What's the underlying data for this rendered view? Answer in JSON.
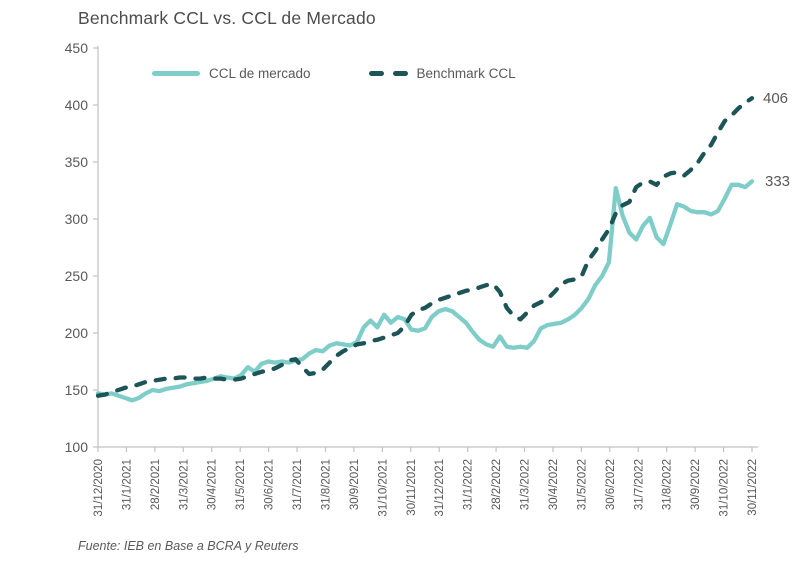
{
  "title": "Benchmark CCL vs. CCL de Mercado",
  "footer": "Fuente: IEB en Base a BCRA y Reuters",
  "colors": {
    "mercado": "#7ECDC8",
    "benchmark": "#1C5458",
    "axis": "#c2c2c2",
    "tick_text": "#595959",
    "title_text": "#4d4d4d"
  },
  "legend": [
    {
      "label": "CCL de mercado",
      "style": "solid"
    },
    {
      "label": "Benchmark CCL",
      "style": "dashed"
    }
  ],
  "chart_data": {
    "type": "line",
    "title": "Benchmark CCL vs. CCL de Mercado",
    "xlabel": "",
    "ylabel": "",
    "ylim": [
      100,
      450
    ],
    "y_ticks": [
      100,
      150,
      200,
      250,
      300,
      350,
      400,
      450
    ],
    "grid": false,
    "legend_position": "top-inside",
    "x_tick_labels": [
      "31/12/2020",
      "31/1/2021",
      "28/2/2021",
      "31/3/2021",
      "30/4/2021",
      "31/5/2021",
      "30/6/2021",
      "31/7/2021",
      "31/8/2021",
      "30/9/2021",
      "31/10/2021",
      "30/11/2021",
      "31/12/2021",
      "31/1/2022",
      "28/2/2022",
      "31/3/2022",
      "30/4/2022",
      "31/5/2022",
      "30/6/2022",
      "31/7/2022",
      "31/8/2022",
      "30/9/2022",
      "31/10/2022",
      "30/11/2022"
    ],
    "series": [
      {
        "name": "CCL de mercado",
        "style": "solid",
        "color": "#7ECDC8",
        "end_label": "333",
        "values": [
          147,
          146,
          147,
          145,
          143,
          141,
          143,
          147,
          150,
          149,
          151,
          152,
          153,
          155,
          156,
          157,
          158,
          160,
          162,
          161,
          160,
          163,
          170,
          166,
          173,
          175,
          174,
          175,
          174,
          176,
          177,
          182,
          185,
          184,
          189,
          191,
          190,
          189,
          192,
          205,
          211,
          205,
          216,
          209,
          214,
          212,
          203,
          202,
          204,
          214,
          219,
          221,
          219,
          214,
          209,
          201,
          194,
          190,
          188,
          197,
          188,
          187,
          188,
          187,
          193,
          204,
          207,
          208,
          209,
          212,
          216,
          222,
          230,
          242,
          250,
          262,
          327,
          303,
          288,
          282,
          294,
          301,
          284,
          278,
          295,
          313,
          311,
          307,
          306,
          306,
          304,
          307,
          318,
          330,
          330,
          328,
          333
        ]
      },
      {
        "name": "Benchmark CCL",
        "style": "dashed",
        "color": "#1C5458",
        "end_label": "406",
        "values": [
          145,
          146,
          148,
          150,
          152,
          153,
          155,
          157,
          158,
          159,
          160,
          160,
          161,
          161,
          160,
          160,
          161,
          160,
          160,
          159,
          159,
          160,
          162,
          164,
          166,
          167,
          169,
          172,
          176,
          177,
          170,
          164,
          165,
          168,
          174,
          180,
          184,
          187,
          190,
          191,
          193,
          194,
          196,
          198,
          200,
          206,
          216,
          220,
          222,
          226,
          229,
          231,
          233,
          235,
          237,
          238,
          240,
          242,
          243,
          236,
          222,
          215,
          212,
          218,
          224,
          227,
          230,
          236,
          243,
          246,
          247,
          250,
          264,
          272,
          282,
          291,
          305,
          312,
          315,
          328,
          332,
          333,
          330,
          337,
          340,
          341,
          338,
          343,
          349,
          358,
          365,
          376,
          386,
          391,
          397,
          402,
          406
        ]
      }
    ],
    "source": "Fuente: IEB en Base a BCRA y Reuters"
  }
}
